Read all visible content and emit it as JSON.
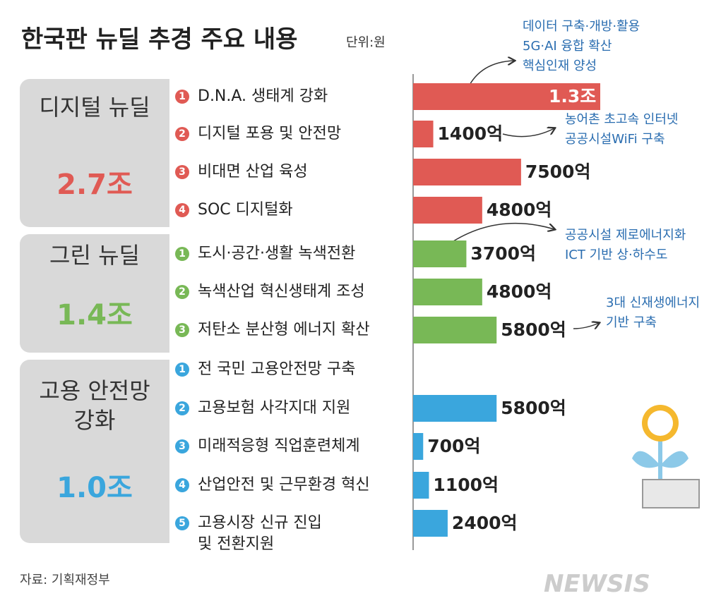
{
  "chart_data": {
    "type": "bar",
    "title": "한국판 뉴딜 추경 주요 내용",
    "unit": "단위:원",
    "groups": [
      {
        "name": "디지털 뉴딜",
        "total": "2.7조",
        "color": "#e05a54",
        "markers": [
          1,
          2,
          3,
          4
        ],
        "categories": [
          "D.N.A. 생태계 강화",
          "디지털 포용 및 안전망",
          "비대면 산업 육성",
          "SOC 디지털화"
        ],
        "values": [
          13000,
          1400,
          7500,
          4800
        ],
        "value_labels": [
          "1.3조",
          "1400억",
          "7500억",
          "4800억"
        ]
      },
      {
        "name": "그린 뉴딜",
        "total": "1.4조",
        "color": "#78b856",
        "markers": [
          1,
          2,
          3
        ],
        "categories": [
          "도시·공간·생활 녹색전환",
          "녹색산업 혁신생태계 조성",
          "저탄소 분산형 에너지 확산"
        ],
        "values": [
          3700,
          4800,
          5800
        ],
        "value_labels": [
          "3700억",
          "4800억",
          "5800억"
        ]
      },
      {
        "name": "고용 안전망\n강화",
        "total": "1.0조",
        "color": "#3aa6dd",
        "markers": [
          1,
          2,
          3,
          4,
          5
        ],
        "categories": [
          "전 국민 고용안전망 구축",
          "고용보험 사각지대 지원",
          "미래적응형 직업훈련체계",
          "산업안전 및 근무환경 혁신",
          "고용시장 신규 진입\n및 전환지원"
        ],
        "values": [
          null,
          5800,
          700,
          1100,
          2400
        ],
        "value_labels": [
          null,
          "5800억",
          "700억",
          "1100억",
          "2400억"
        ]
      }
    ],
    "annotations": [
      {
        "lines": [
          "데이터 구축·개방·활용",
          "5G·AI 융합 확산",
          "핵심인재 양성"
        ]
      },
      {
        "lines": [
          "농어촌 초고속 인터넷",
          "공공시설WiFi 구축"
        ]
      },
      {
        "lines": [
          "공공시설 제로에너지화",
          "ICT 기반 상·하수도"
        ]
      },
      {
        "lines": [
          "3대 신재생에너지",
          "기반 구축"
        ]
      }
    ],
    "source": "자료: 기획재정부",
    "credit": "NEWSIS"
  }
}
